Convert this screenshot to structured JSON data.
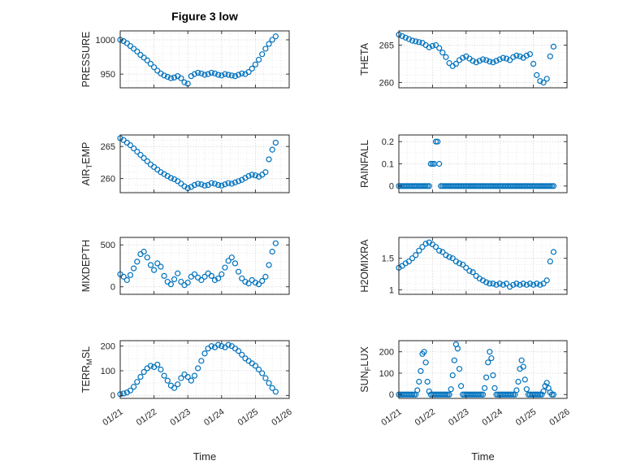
{
  "figure": {
    "title": "Figure 3 low"
  },
  "colors": {
    "marker": "#0072BD",
    "axis": "#262626",
    "grid_major": "#c3c3c3",
    "grid_minor": "#e0e0e0",
    "text": "#262626"
  },
  "x_axis": {
    "label": "Time",
    "lim": [
      0,
      5
    ],
    "tick_values": [
      0,
      1,
      2,
      3,
      4,
      5
    ],
    "tick_labels": [
      "01/21",
      "01/22",
      "01/23",
      "01/24",
      "01/25",
      "01/26"
    ],
    "minor_step": 0.25
  },
  "x_grids": {
    "step01": [
      0,
      0.1,
      0.2,
      0.3,
      0.4,
      0.5,
      0.6,
      0.7,
      0.8,
      0.9,
      1,
      1.1,
      1.2,
      1.3,
      1.4,
      1.5,
      1.6,
      1.7,
      1.8,
      1.9,
      2,
      2.1,
      2.2,
      2.3,
      2.4,
      2.5,
      2.6,
      2.7,
      2.8,
      2.9,
      3,
      3.1,
      3.2,
      3.3,
      3.4,
      3.5,
      3.6,
      3.7,
      3.8,
      3.9,
      4,
      4.1,
      4.2,
      4.3,
      4.4,
      4.5,
      4.6
    ],
    "step005": [
      0,
      0.05,
      0.1,
      0.15,
      0.2,
      0.25,
      0.3,
      0.35,
      0.4,
      0.45,
      0.5,
      0.55,
      0.6,
      0.65,
      0.7,
      0.75,
      0.8,
      0.85,
      0.9,
      0.95,
      1,
      1.05,
      1.1,
      1.15,
      1.2,
      1.25,
      1.3,
      1.35,
      1.4,
      1.45,
      1.5,
      1.55,
      1.6,
      1.65,
      1.7,
      1.75,
      1.8,
      1.85,
      1.9,
      1.95,
      2,
      2.05,
      2.1,
      2.15,
      2.2,
      2.25,
      2.3,
      2.35,
      2.4,
      2.45,
      2.5,
      2.55,
      2.6,
      2.65,
      2.7,
      2.75,
      2.8,
      2.85,
      2.9,
      2.95,
      3,
      3.05,
      3.1,
      3.15,
      3.2,
      3.25,
      3.3,
      3.35,
      3.4,
      3.45,
      3.5,
      3.55,
      3.6,
      3.65,
      3.7,
      3.75,
      3.8,
      3.85,
      3.9,
      3.95,
      4,
      4.05,
      4.1,
      4.15,
      4.2,
      4.25,
      4.3,
      4.35,
      4.4,
      4.45,
      4.5,
      4.55,
      4.6
    ]
  },
  "chart_data": [
    {
      "type": "scatter",
      "ylabel": "PRESSURE",
      "ylabel_parts": [
        {
          "t": "PRESSURE"
        }
      ],
      "x_ref": "step01",
      "y": [
        1000,
        998,
        995,
        991,
        987,
        983,
        978,
        974,
        970,
        965,
        960,
        955,
        951,
        948,
        946,
        944,
        945,
        947,
        944,
        938,
        936,
        947,
        950,
        952,
        951,
        949,
        950,
        952,
        951,
        949,
        948,
        950,
        949,
        948,
        947,
        949,
        951,
        950,
        953,
        958,
        964,
        971,
        979,
        987,
        994,
        1000,
        1005
      ],
      "ylim": [
        930,
        1013
      ],
      "ytick_values": [
        950,
        1000
      ],
      "ytick_labels": [
        "950",
        "1000"
      ],
      "y_minor_step": 10
    },
    {
      "type": "scatter",
      "ylabel": "THETA",
      "ylabel_parts": [
        {
          "t": "THETA"
        }
      ],
      "x_ref": "step01",
      "y": [
        266.4,
        266.2,
        266,
        265.8,
        265.6,
        265.5,
        265.4,
        265.3,
        265,
        264.7,
        264.9,
        265,
        264.6,
        264,
        263.4,
        262.6,
        262.2,
        262.5,
        263,
        263.3,
        263.5,
        263.2,
        262.9,
        262.7,
        262.9,
        263.1,
        263,
        262.8,
        262.7,
        262.9,
        263.1,
        263.3,
        263.2,
        263,
        263.4,
        263.6,
        263.5,
        263.3,
        263.6,
        263.8,
        262.5,
        261,
        260.2,
        260,
        260.5,
        263.5,
        264.8
      ],
      "ylim": [
        259.3,
        266.9
      ],
      "ytick_values": [
        260,
        265
      ],
      "ytick_labels": [
        "260",
        "265"
      ],
      "y_minor_step": 1
    },
    {
      "type": "scatter",
      "ylabel": "AIR_TEMP",
      "ylabel_parts": [
        {
          "t": "AIR"
        },
        {
          "t": "T",
          "sub": true
        },
        {
          "t": "EMP"
        }
      ],
      "x_ref": "step01",
      "y": [
        266.3,
        266,
        265.6,
        265.2,
        264.7,
        264.2,
        263.7,
        263.2,
        262.7,
        262.2,
        261.8,
        261.4,
        261,
        260.7,
        260.4,
        260.1,
        259.9,
        259.6,
        259.2,
        258.8,
        258.5,
        258.7,
        259,
        259.2,
        259.1,
        258.9,
        259,
        259.3,
        259.2,
        259,
        258.9,
        259.1,
        259.3,
        259.2,
        259.4,
        259.6,
        259.8,
        260.1,
        260.4,
        260.6,
        260.5,
        260.3,
        260.6,
        261,
        263,
        264.5,
        265.6
      ],
      "ylim": [
        257.8,
        266.8
      ],
      "ytick_values": [
        260,
        265
      ],
      "ytick_labels": [
        "260",
        "265"
      ],
      "y_minor_step": 1
    },
    {
      "type": "scatter",
      "ylabel": "RAINFALL",
      "ylabel_parts": [
        {
          "t": "RAINFALL"
        }
      ],
      "x_ref": "step005",
      "y": [
        0,
        0,
        0,
        0,
        0,
        0,
        0,
        0,
        0,
        0,
        0,
        0,
        0,
        0,
        0,
        0,
        0,
        0,
        0,
        0.1,
        0.1,
        0.1,
        0.2,
        0.2,
        0.1,
        0,
        0,
        0,
        0,
        0,
        0,
        0,
        0,
        0,
        0,
        0,
        0,
        0,
        0,
        0,
        0,
        0,
        0,
        0,
        0,
        0,
        0,
        0,
        0,
        0,
        0,
        0,
        0,
        0,
        0,
        0,
        0,
        0,
        0,
        0,
        0,
        0,
        0,
        0,
        0,
        0,
        0,
        0,
        0,
        0,
        0,
        0,
        0,
        0,
        0,
        0,
        0,
        0,
        0,
        0,
        0,
        0,
        0,
        0,
        0,
        0,
        0,
        0,
        0,
        0,
        0,
        0,
        0
      ],
      "ylim": [
        -0.03,
        0.23
      ],
      "ytick_values": [
        0,
        0.1,
        0.2
      ],
      "ytick_labels": [
        "0",
        "0.1",
        "0.2"
      ],
      "y_minor_step": 0.05
    },
    {
      "type": "scatter",
      "ylabel": "MIXDEPTH",
      "ylabel_parts": [
        {
          "t": "MIXDEPTH"
        }
      ],
      "x_ref": "step01",
      "y": [
        150,
        120,
        80,
        140,
        220,
        300,
        390,
        420,
        350,
        260,
        200,
        280,
        240,
        130,
        60,
        30,
        90,
        160,
        60,
        20,
        50,
        120,
        150,
        110,
        80,
        120,
        160,
        130,
        80,
        100,
        150,
        230,
        310,
        350,
        280,
        180,
        100,
        60,
        40,
        80,
        50,
        30,
        70,
        120,
        260,
        420,
        520
      ],
      "ylim": [
        -90,
        590
      ],
      "ytick_values": [
        0,
        500
      ],
      "ytick_labels": [
        "0",
        "500"
      ],
      "y_minor_step": 100
    },
    {
      "type": "scatter",
      "ylabel": "H2OMIXRA",
      "ylabel_parts": [
        {
          "t": "H2OMIXRA"
        }
      ],
      "x_ref": "step01",
      "y": [
        1.35,
        1.38,
        1.42,
        1.45,
        1.5,
        1.55,
        1.62,
        1.68,
        1.73,
        1.75,
        1.72,
        1.68,
        1.62,
        1.6,
        1.55,
        1.52,
        1.5,
        1.45,
        1.42,
        1.4,
        1.35,
        1.3,
        1.28,
        1.22,
        1.18,
        1.15,
        1.12,
        1.1,
        1.1,
        1.08,
        1.1,
        1.08,
        1.1,
        1.05,
        1.08,
        1.1,
        1.08,
        1.1,
        1.08,
        1.1,
        1.08,
        1.1,
        1.08,
        1.1,
        1.15,
        1.45,
        1.6
      ],
      "ylim": [
        0.93,
        1.83
      ],
      "ytick_values": [
        1,
        1.5
      ],
      "ytick_labels": [
        "1",
        "1.5"
      ],
      "y_minor_step": 0.1
    },
    {
      "type": "scatter",
      "ylabel": "TERR_MSL",
      "ylabel_parts": [
        {
          "t": "TERR"
        },
        {
          "t": "M",
          "sub": true
        },
        {
          "t": "SL"
        }
      ],
      "x_ref": "step01",
      "y": [
        5,
        8,
        12,
        20,
        35,
        55,
        75,
        95,
        110,
        120,
        115,
        125,
        105,
        80,
        60,
        40,
        30,
        45,
        70,
        85,
        75,
        60,
        80,
        110,
        140,
        170,
        190,
        200,
        195,
        205,
        200,
        195,
        205,
        200,
        190,
        180,
        165,
        150,
        140,
        130,
        120,
        105,
        90,
        70,
        50,
        30,
        15
      ],
      "ylim": [
        -12,
        222
      ],
      "ytick_values": [
        0,
        100,
        200
      ],
      "ytick_labels": [
        "0",
        "100",
        "200"
      ],
      "y_minor_step": 50
    },
    {
      "type": "scatter",
      "ylabel": "SUN_FLUX",
      "ylabel_parts": [
        {
          "t": "SUN"
        },
        {
          "t": "F",
          "sub": true
        },
        {
          "t": "LUX"
        }
      ],
      "x_ref": "step005",
      "y": [
        0,
        0,
        0,
        0,
        0,
        0,
        0,
        0,
        0,
        0,
        0,
        20,
        60,
        110,
        190,
        200,
        150,
        60,
        15,
        0,
        0,
        0,
        0,
        0,
        0,
        0,
        0,
        0,
        0,
        0,
        0,
        25,
        90,
        160,
        235,
        215,
        120,
        40,
        0,
        0,
        0,
        0,
        0,
        0,
        0,
        0,
        0,
        0,
        0,
        0,
        0,
        30,
        80,
        150,
        200,
        170,
        90,
        30,
        0,
        0,
        0,
        0,
        0,
        0,
        0,
        0,
        0,
        0,
        0,
        0,
        20,
        60,
        120,
        160,
        130,
        70,
        25,
        0,
        0,
        0,
        0,
        0,
        0,
        0,
        0,
        0,
        15,
        40,
        55,
        30,
        10,
        0,
        0
      ],
      "ylim": [
        -18,
        252
      ],
      "ytick_values": [
        0,
        100,
        200
      ],
      "ytick_labels": [
        "0",
        "100",
        "200"
      ],
      "y_minor_step": 50
    }
  ]
}
